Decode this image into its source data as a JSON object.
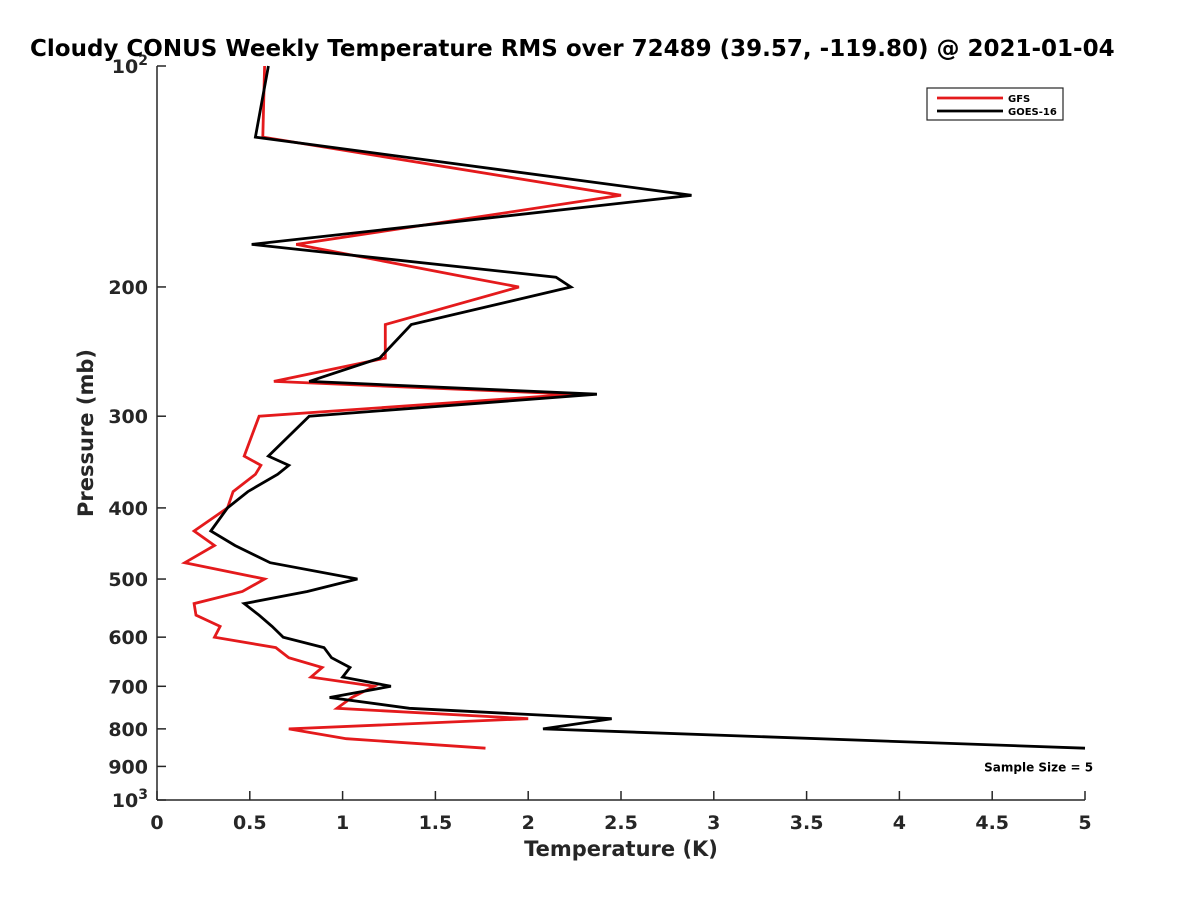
{
  "chart_data": {
    "type": "line",
    "title": "Cloudy CONUS Weekly Temperature RMS over 72489 (39.57, -119.80) @ 2021-01-04",
    "xlabel": "Temperature (K)",
    "ylabel": "Pressure (mb)",
    "xlim": [
      0,
      5
    ],
    "ylim": [
      100,
      1000
    ],
    "y_scale": "log",
    "y_reversed": true,
    "grid": false,
    "legend_position": "top-right",
    "x_ticks": [
      {
        "value": 0,
        "label": "0"
      },
      {
        "value": 0.5,
        "label": "0.5"
      },
      {
        "value": 1,
        "label": "1"
      },
      {
        "value": 1.5,
        "label": "1.5"
      },
      {
        "value": 2,
        "label": "2"
      },
      {
        "value": 2.5,
        "label": "2.5"
      },
      {
        "value": 3,
        "label": "3"
      },
      {
        "value": 3.5,
        "label": "3.5"
      },
      {
        "value": 4,
        "label": "4"
      },
      {
        "value": 4.5,
        "label": "4.5"
      },
      {
        "value": 5,
        "label": "5"
      }
    ],
    "y_ticks": [
      {
        "value": 100,
        "label": "10",
        "sup": "2"
      },
      {
        "value": 200,
        "label": "200",
        "sup": ""
      },
      {
        "value": 300,
        "label": "300",
        "sup": ""
      },
      {
        "value": 400,
        "label": "400",
        "sup": ""
      },
      {
        "value": 500,
        "label": "500",
        "sup": ""
      },
      {
        "value": 600,
        "label": "600",
        "sup": ""
      },
      {
        "value": 700,
        "label": "700",
        "sup": ""
      },
      {
        "value": 800,
        "label": "800",
        "sup": ""
      },
      {
        "value": 900,
        "label": "900",
        "sup": ""
      },
      {
        "value": 1000,
        "label": "10",
        "sup": "3"
      }
    ],
    "series": [
      {
        "name": "GFS",
        "color": "#e41a1c",
        "points": [
          [
            0.58,
            100
          ],
          [
            0.57,
            125
          ],
          [
            2.5,
            150
          ],
          [
            0.75,
            175
          ],
          [
            1.67,
            194
          ],
          [
            1.95,
            200
          ],
          [
            1.23,
            225
          ],
          [
            1.23,
            250
          ],
          [
            0.63,
            269
          ],
          [
            2.25,
            280
          ],
          [
            0.55,
            300
          ],
          [
            0.47,
            340
          ],
          [
            0.56,
            350
          ],
          [
            0.53,
            360
          ],
          [
            0.41,
            380
          ],
          [
            0.38,
            400
          ],
          [
            0.2,
            430
          ],
          [
            0.31,
            450
          ],
          [
            0.15,
            475
          ],
          [
            0.58,
            500
          ],
          [
            0.46,
            520
          ],
          [
            0.2,
            540
          ],
          [
            0.21,
            560
          ],
          [
            0.34,
            580
          ],
          [
            0.31,
            600
          ],
          [
            0.64,
            620
          ],
          [
            0.71,
            640
          ],
          [
            0.89,
            660
          ],
          [
            0.83,
            680
          ],
          [
            1.17,
            700
          ],
          [
            1.05,
            725
          ],
          [
            0.97,
            750
          ],
          [
            2.0,
            775
          ],
          [
            0.71,
            800
          ],
          [
            1.02,
            825
          ],
          [
            1.77,
            850
          ]
        ]
      },
      {
        "name": "GOES-16",
        "color": "#000000",
        "points": [
          [
            0.6,
            100
          ],
          [
            0.53,
            125
          ],
          [
            2.88,
            150
          ],
          [
            0.51,
            175
          ],
          [
            2.15,
            194
          ],
          [
            2.23,
            200
          ],
          [
            1.37,
            225
          ],
          [
            1.2,
            250
          ],
          [
            0.82,
            269
          ],
          [
            2.37,
            280
          ],
          [
            0.82,
            300
          ],
          [
            0.6,
            340
          ],
          [
            0.71,
            350
          ],
          [
            0.65,
            360
          ],
          [
            0.49,
            380
          ],
          [
            0.38,
            400
          ],
          [
            0.29,
            430
          ],
          [
            0.42,
            450
          ],
          [
            0.61,
            475
          ],
          [
            1.08,
            500
          ],
          [
            0.81,
            520
          ],
          [
            0.47,
            540
          ],
          [
            0.55,
            560
          ],
          [
            0.62,
            580
          ],
          [
            0.68,
            600
          ],
          [
            0.9,
            620
          ],
          [
            0.94,
            640
          ],
          [
            1.04,
            660
          ],
          [
            1.0,
            680
          ],
          [
            1.26,
            700
          ],
          [
            0.93,
            725
          ],
          [
            1.36,
            750
          ],
          [
            2.45,
            775
          ],
          [
            2.08,
            800
          ],
          [
            5.0,
            850
          ]
        ]
      }
    ],
    "annotations": [
      {
        "text": "Sample Size = 5",
        "x": 4.75,
        "y": 900
      }
    ]
  }
}
